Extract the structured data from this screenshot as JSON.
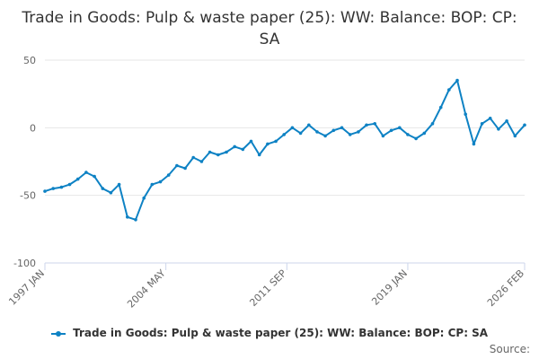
{
  "chart_data": {
    "type": "line",
    "title": "Trade in Goods: Pulp & waste paper (25): WW: Balance: BOP: CP: SA",
    "xlabel": "",
    "ylabel": "",
    "ylim": [
      -100,
      50
    ],
    "yticks": [
      "50",
      "0",
      "-50",
      "-100"
    ],
    "xticks": [
      "1997 JAN",
      "2004 MAY",
      "2011 SEP",
      "2019 JAN",
      "2026 FEB"
    ],
    "grid": true,
    "legend_position": "bottom",
    "series": [
      {
        "name": "Trade in Goods: Pulp & waste paper (25): WW: Balance: BOP: CP: SA",
        "color": "#0e82c4",
        "x": [
          "1997-01",
          "1997-07",
          "1998-01",
          "1998-07",
          "1999-01",
          "1999-07",
          "2000-01",
          "2000-07",
          "2001-01",
          "2001-07",
          "2002-01",
          "2002-07",
          "2003-01",
          "2003-07",
          "2004-01",
          "2004-07",
          "2005-01",
          "2005-07",
          "2006-01",
          "2006-07",
          "2007-01",
          "2007-07",
          "2008-01",
          "2008-07",
          "2009-01",
          "2009-07",
          "2010-01",
          "2010-07",
          "2011-01",
          "2011-07",
          "2012-01",
          "2012-07",
          "2013-01",
          "2013-07",
          "2014-01",
          "2014-07",
          "2015-01",
          "2015-07",
          "2016-01",
          "2016-07",
          "2017-01",
          "2017-07",
          "2018-01",
          "2018-07",
          "2019-01",
          "2019-07",
          "2020-01",
          "2020-07",
          "2021-01",
          "2021-07",
          "2022-01",
          "2022-07",
          "2023-01",
          "2023-07",
          "2024-01",
          "2024-07",
          "2025-01",
          "2025-07",
          "2026-02"
        ],
        "values": [
          -47,
          -45,
          -44,
          -42,
          -38,
          -33,
          -36,
          -45,
          -48,
          -42,
          -66,
          -68,
          -52,
          -42,
          -40,
          -35,
          -28,
          -30,
          -22,
          -25,
          -18,
          -20,
          -18,
          -14,
          -16,
          -10,
          -20,
          -12,
          -10,
          -5,
          0,
          -4,
          2,
          -3,
          -6,
          -2,
          0,
          -5,
          -3,
          2,
          3,
          -6,
          -2,
          0,
          -5,
          -8,
          -4,
          3,
          15,
          28,
          35,
          10,
          -12,
          3,
          7,
          -1,
          5,
          -6,
          2
        ]
      }
    ],
    "source_label": "Source:"
  }
}
